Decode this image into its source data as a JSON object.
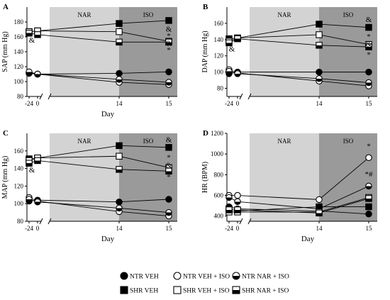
{
  "figure": {
    "panels": [
      "A",
      "B",
      "C",
      "D"
    ],
    "phases": [
      {
        "label": "NAR",
        "from": 0,
        "to": 14,
        "color": "#d3d3d3"
      },
      {
        "label": "ISO",
        "from": 14,
        "to": 15,
        "color": "#9a9a9a"
      }
    ],
    "legend_rows": [
      [
        {
          "label": "NTR VEH",
          "marker": "circle-filled"
        },
        {
          "label": "NTR VEH + ISO",
          "marker": "circle-open"
        },
        {
          "label": "NTR NAR + ISO",
          "marker": "circle-half"
        }
      ],
      [
        {
          "label": "SHR VEH",
          "marker": "square-filled"
        },
        {
          "label": "SHR VEH + ISO",
          "marker": "square-open"
        },
        {
          "label": "SHR NAR + ISO",
          "marker": "square-half"
        }
      ]
    ]
  },
  "chart_data": [
    {
      "panel": "A",
      "type": "line",
      "xlabel": "Day",
      "ylabel": "SAP (mm Hg)",
      "ylim": [
        80,
        200
      ],
      "yticks": [
        80,
        100,
        120,
        140,
        160,
        180
      ],
      "x": [
        "-24",
        "0",
        "14",
        "15"
      ],
      "series": [
        {
          "name": "NTR VEH",
          "marker": "circle-filled",
          "values": [
            111,
            110,
            111,
            113
          ]
        },
        {
          "name": "NTR VEH + ISO",
          "marker": "circle-open",
          "values": [
            112,
            110,
            99,
            96
          ]
        },
        {
          "name": "NTR NAR + ISO",
          "marker": "circle-half",
          "values": [
            113,
            110,
            103,
            99
          ]
        },
        {
          "name": "SHR VEH",
          "marker": "square-filled",
          "values": [
            167,
            168,
            178,
            182
          ]
        },
        {
          "name": "SHR VEH + ISO",
          "marker": "square-open",
          "values": [
            167,
            168,
            167,
            154
          ]
        },
        {
          "name": "SHR NAR + ISO",
          "marker": "square-half",
          "values": [
            165,
            163,
            153,
            153
          ]
        }
      ],
      "annotations": [
        {
          "text": "&",
          "x": "-24",
          "y": 156
        },
        {
          "text": "&",
          "x": "15",
          "y": 171
        },
        {
          "text": "*",
          "x": "15",
          "y": 162
        },
        {
          "text": "&",
          "x": "15",
          "y": 152
        },
        {
          "text": "*",
          "x": "15",
          "y": 143
        }
      ]
    },
    {
      "panel": "B",
      "type": "line",
      "xlabel": "",
      "ylabel": "DAP (mm Hg)",
      "ylim": [
        70,
        180
      ],
      "yticks": [
        80,
        100,
        120,
        140,
        160
      ],
      "x": [
        "-24",
        "0",
        "14",
        "15"
      ],
      "series": [
        {
          "name": "NTR VEH",
          "marker": "circle-filled",
          "values": [
            98,
            100,
            100,
            100
          ]
        },
        {
          "name": "NTR VEH + ISO",
          "marker": "circle-open",
          "values": [
            103,
            99,
            89,
            83
          ]
        },
        {
          "name": "NTR NAR + ISO",
          "marker": "circle-half",
          "values": [
            101,
            98,
            92,
            87
          ]
        },
        {
          "name": "SHR VEH",
          "marker": "square-filled",
          "values": [
            141,
            142,
            159,
            155
          ]
        },
        {
          "name": "SHR VEH + ISO",
          "marker": "square-open",
          "values": [
            138,
            142,
            146,
            134
          ]
        },
        {
          "name": "SHR NAR + ISO",
          "marker": "square-half",
          "values": [
            136,
            141,
            133,
            131
          ]
        }
      ],
      "annotations": [
        {
          "text": "&",
          "x": "-24",
          "y": 129
        },
        {
          "text": "&",
          "x": "15",
          "y": 165
        },
        {
          "text": "*",
          "x": "15",
          "y": 144
        },
        {
          "text": "&",
          "x": "15",
          "y": 135
        },
        {
          "text": "*",
          "x": "15",
          "y": 122
        }
      ]
    },
    {
      "panel": "C",
      "type": "line",
      "xlabel": "Day",
      "ylabel": "MAP (mm Hg)",
      "ylim": [
        80,
        180
      ],
      "yticks": [
        80,
        100,
        120,
        140,
        160
      ],
      "x": [
        "-24",
        "0",
        "14",
        "15"
      ],
      "series": [
        {
          "name": "NTR VEH",
          "marker": "circle-filled",
          "values": [
            103,
            104,
            102,
            105
          ]
        },
        {
          "name": "NTR VEH + ISO",
          "marker": "circle-open",
          "values": [
            107,
            103,
            91,
            86
          ]
        },
        {
          "name": "NTR NAR + ISO",
          "marker": "circle-half",
          "values": [
            105,
            102,
            95,
            90
          ]
        },
        {
          "name": "SHR VEH",
          "marker": "square-filled",
          "values": [
            151,
            152,
            166,
            164
          ]
        },
        {
          "name": "SHR VEH + ISO",
          "marker": "square-open",
          "values": [
            149,
            152,
            154,
            141
          ]
        },
        {
          "name": "SHR NAR + ISO",
          "marker": "square-half",
          "values": [
            146,
            149,
            139,
            137
          ]
        }
      ],
      "annotations": [
        {
          "text": "&",
          "x": "-24",
          "y": 139
        },
        {
          "text": "&",
          "x": "15",
          "y": 173
        },
        {
          "text": "*",
          "x": "15",
          "y": 153
        },
        {
          "text": "&",
          "x": "15",
          "y": 144
        },
        {
          "text": "*",
          "x": "15",
          "y": 131
        }
      ]
    },
    {
      "panel": "D",
      "type": "line",
      "xlabel": "Day",
      "ylabel": "HR (BPM)",
      "ylim": [
        350,
        1200
      ],
      "yticks": [
        400,
        600,
        800,
        1000,
        1200
      ],
      "x": [
        "-24",
        "0",
        "14",
        "15"
      ],
      "series": [
        {
          "name": "NTR VEH",
          "marker": "circle-filled",
          "values": [
            490,
            470,
            450,
            420
          ]
        },
        {
          "name": "NTR VEH + ISO",
          "marker": "circle-open",
          "values": [
            600,
            600,
            560,
            965
          ]
        },
        {
          "name": "NTR NAR + ISO",
          "marker": "circle-half",
          "values": [
            580,
            540,
            470,
            690
          ]
        },
        {
          "name": "SHR VEH",
          "marker": "square-filled",
          "values": [
            470,
            450,
            490,
            490
          ]
        },
        {
          "name": "SHR VEH + ISO",
          "marker": "square-open",
          "values": [
            440,
            440,
            440,
            580
          ]
        },
        {
          "name": "SHR NAR + ISO",
          "marker": "square-half",
          "values": [
            460,
            460,
            430,
            570
          ]
        }
      ],
      "annotations": [
        {
          "text": "*",
          "x": "15",
          "y": 1080
        },
        {
          "text": "*#",
          "x": "15",
          "y": 810
        }
      ]
    }
  ]
}
